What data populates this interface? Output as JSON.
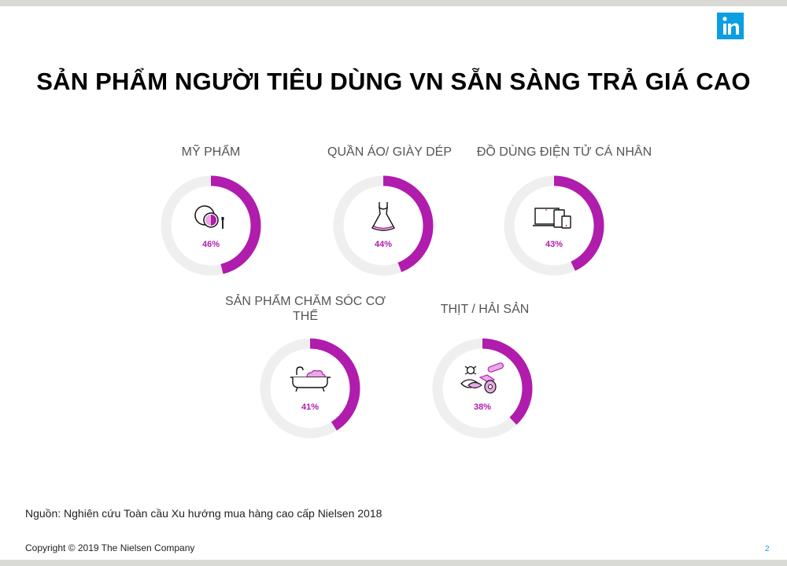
{
  "title": "SẢN PHẨM NGƯỜI TIÊU DÙNG VN SẴN SÀNG TRẢ GIÁ CAO",
  "source": "Nguồn: Nghiên cứu Toàn cầu Xu hướng mua hàng cao cấp Nielsen 2018",
  "copyright": "Copyright © 2019  The Nielsen Company",
  "page_number": "2",
  "colors": {
    "accent": "#b01cac",
    "track": "#efefef",
    "logo": "#0b9ee2",
    "pct_text": "#b01cac"
  },
  "chart_data": {
    "type": "donut",
    "title": "SẢN PHẨM NGƯỜI TIÊU DÙNG VN SẴN SÀNG TRẢ GIÁ CAO",
    "unit": "%",
    "categories": [
      "MỸ PHẨM",
      "QUẦN ÁO/ GIÀY DÉP",
      "ĐỒ DÙNG ĐIỆN TỬ CÁ NHÂN",
      "SẢN PHẨM CHĂM SÓC CƠ THỂ",
      "THỊT / HẢI SẢN"
    ],
    "values": [
      46,
      44,
      43,
      41,
      38
    ],
    "items": [
      {
        "label": "MỸ PHẨM",
        "value": 46,
        "pct_label": "46%",
        "icon": "cosmetics-icon"
      },
      {
        "label": "QUẦN ÁO/ GIÀY DÉP",
        "value": 44,
        "pct_label": "44%",
        "icon": "dress-icon"
      },
      {
        "label": "ĐỒ DÙNG ĐIỆN TỬ CÁ NHÂN",
        "value": 43,
        "pct_label": "43%",
        "icon": "devices-icon"
      },
      {
        "label": "SẢN PHẨM CHĂM SÓC CƠ THỂ",
        "value": 41,
        "pct_label": "41%",
        "icon": "bathtub-icon"
      },
      {
        "label": "THỊT / HẢI SẢN",
        "value": 38,
        "pct_label": "38%",
        "icon": "meat-seafood-icon"
      }
    ]
  }
}
